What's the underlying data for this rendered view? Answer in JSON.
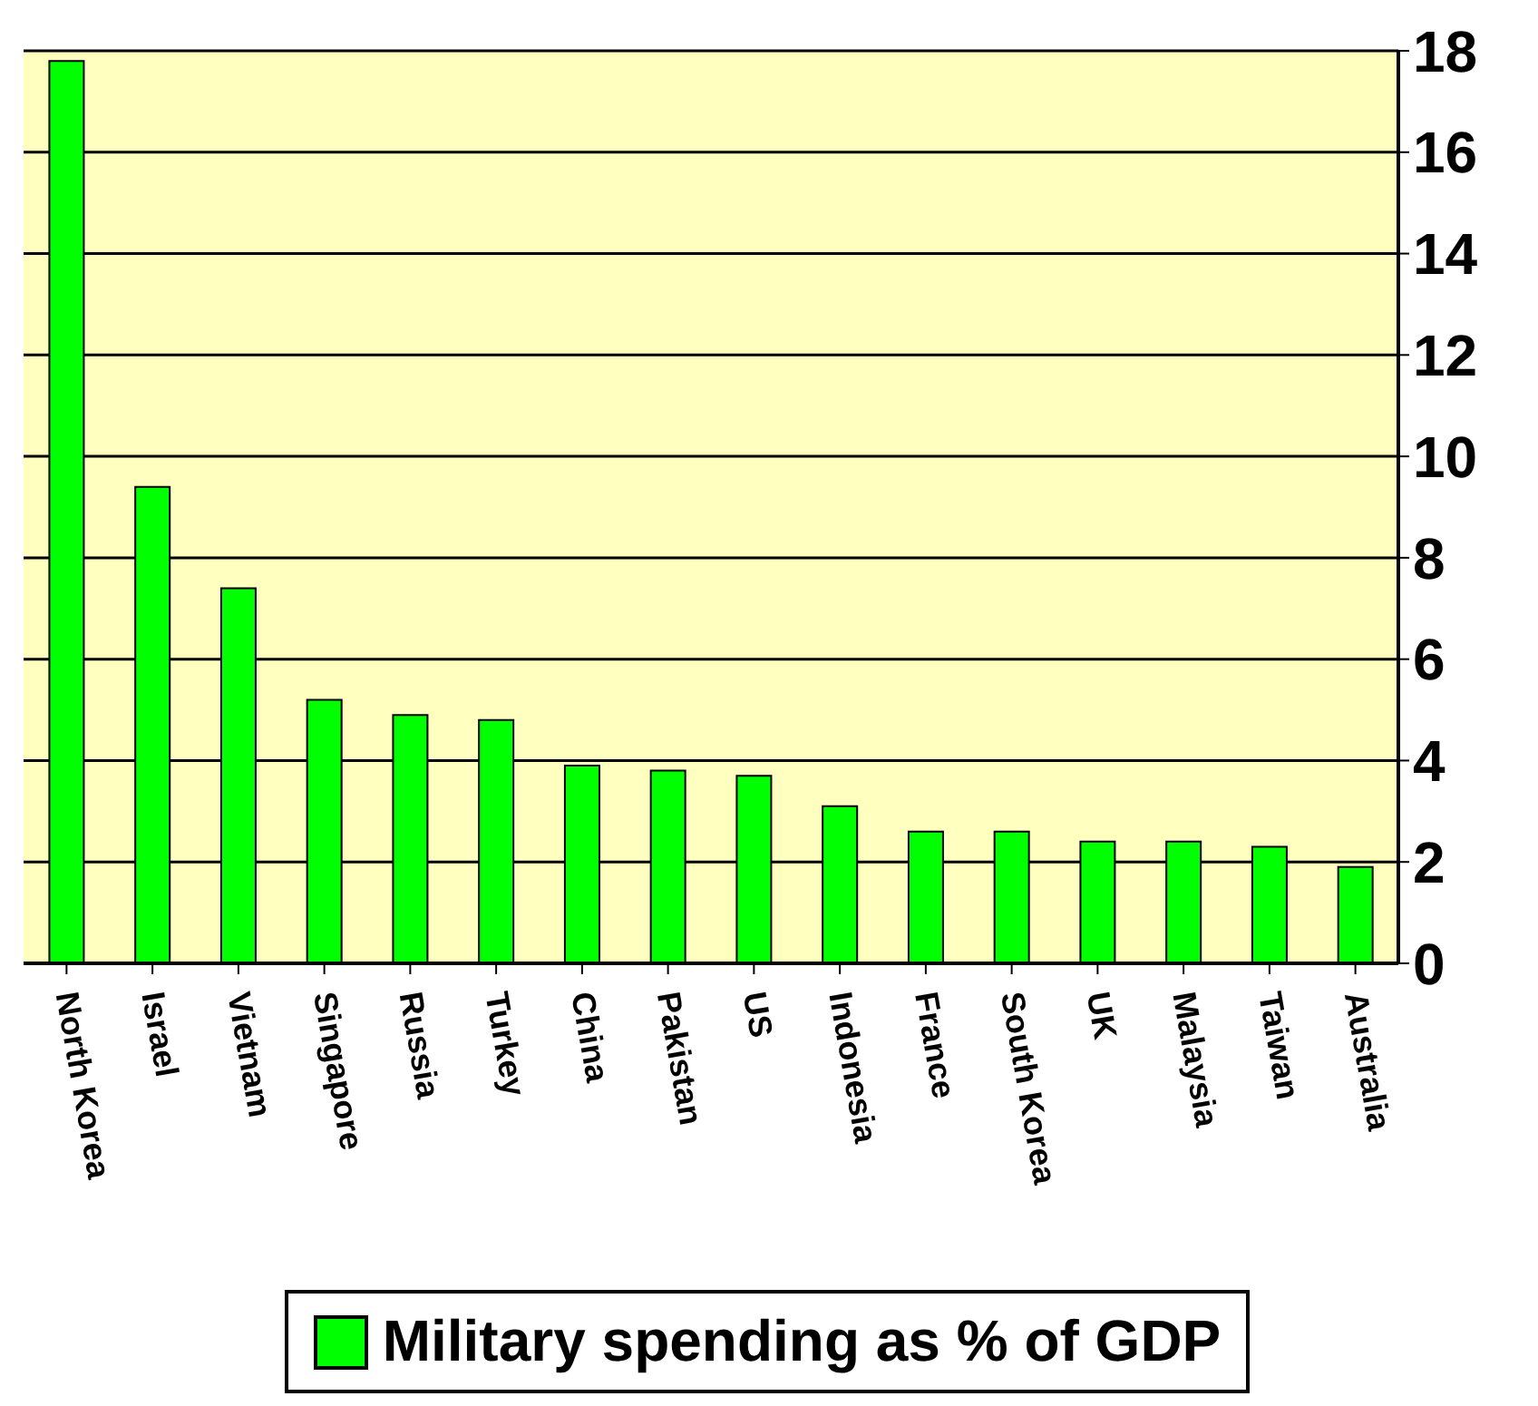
{
  "chart_data": {
    "type": "bar",
    "categories": [
      "North Korea",
      "Israel",
      "Vietnam",
      "Singapore",
      "Russia",
      "Turkey",
      "China",
      "Pakistan",
      "US",
      "Indonesia",
      "France",
      "South Korea",
      "UK",
      "Malaysia",
      "Taiwan",
      "Australia"
    ],
    "series": [
      {
        "name": "Military spending as % of GDP",
        "color": "#00ff00",
        "values": [
          17.8,
          9.4,
          7.4,
          5.2,
          4.9,
          4.8,
          3.9,
          3.8,
          3.7,
          3.1,
          2.6,
          2.6,
          2.4,
          2.4,
          2.3,
          1.9
        ]
      }
    ],
    "ylim": [
      0,
      18
    ],
    "yticks": [
      0,
      2,
      4,
      6,
      8,
      10,
      12,
      14,
      16,
      18
    ],
    "grid": "y",
    "legend": "bottom"
  }
}
